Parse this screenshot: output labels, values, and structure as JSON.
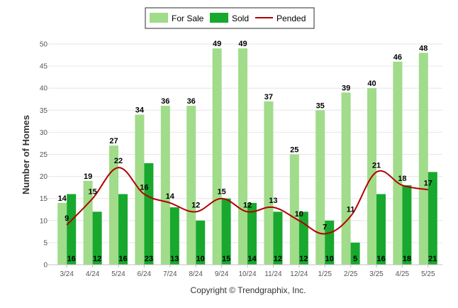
{
  "chart_data": {
    "type": "bar",
    "categories": [
      "3/24",
      "4/24",
      "5/24",
      "6/24",
      "7/24",
      "8/24",
      "9/24",
      "10/24",
      "11/24",
      "12/24",
      "1/25",
      "2/25",
      "3/25",
      "4/25",
      "5/25"
    ],
    "series": [
      {
        "name": "For Sale",
        "kind": "bar",
        "color": "#a0dc8a",
        "values": [
          14,
          19,
          27,
          34,
          36,
          36,
          49,
          49,
          37,
          25,
          35,
          39,
          40,
          46,
          48
        ]
      },
      {
        "name": "Sold",
        "kind": "bar",
        "color": "#18a82e",
        "values": [
          16,
          12,
          16,
          23,
          13,
          10,
          15,
          14,
          12,
          12,
          10,
          5,
          16,
          18,
          21
        ]
      },
      {
        "name": "Pended",
        "kind": "line",
        "color": "#b30000",
        "values": [
          9,
          15,
          22,
          16,
          14,
          12,
          15,
          12,
          13,
          10,
          7,
          11,
          21,
          18,
          17
        ]
      }
    ],
    "title": "",
    "xlabel": "",
    "ylabel": "Number of Homes",
    "ylim": [
      0,
      50
    ],
    "yticks": [
      0,
      5,
      10,
      15,
      20,
      25,
      30,
      35,
      40,
      45,
      50
    ],
    "grid": true,
    "legend": "top-center"
  },
  "footer": "Copyright © Trendgraphix, Inc."
}
